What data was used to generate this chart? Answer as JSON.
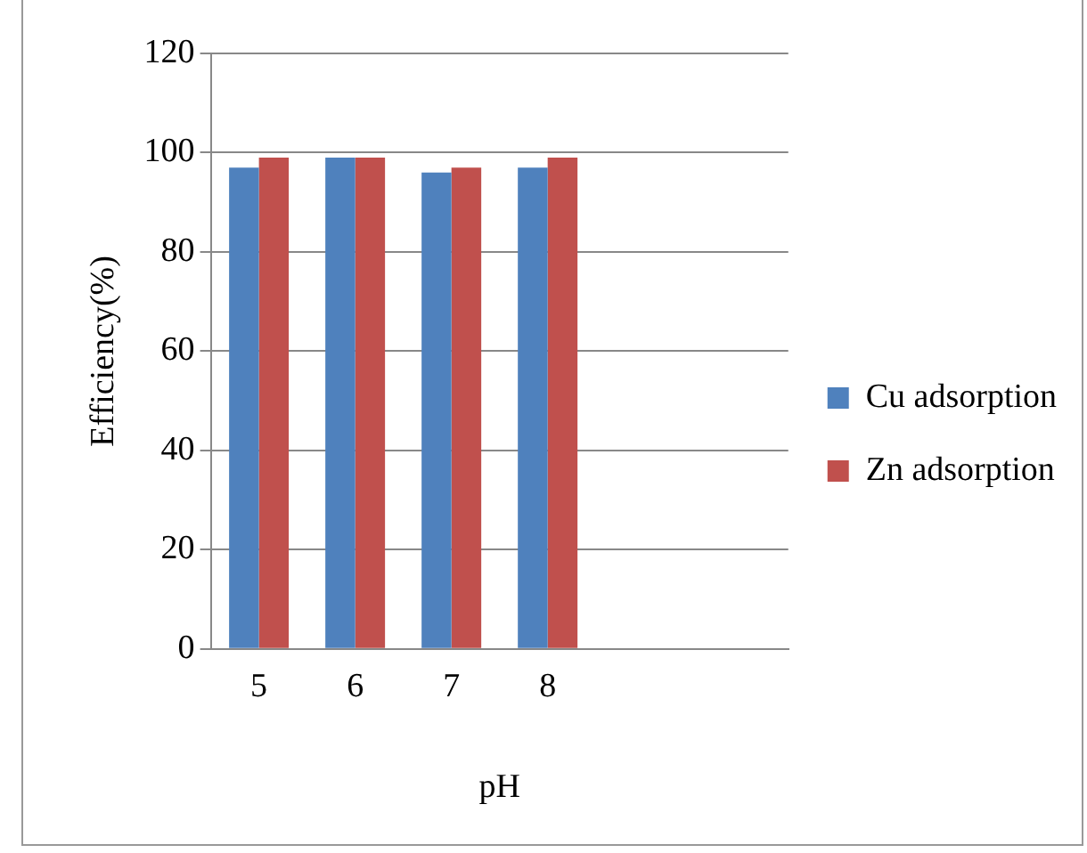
{
  "chart_data": {
    "type": "bar",
    "xlabel": "pH",
    "ylabel": "Efficiency(%)",
    "categories": [
      "5",
      "6",
      "7",
      "8",
      null,
      null
    ],
    "series": [
      {
        "name": "Cu adsorption",
        "color": "#4f81bd",
        "values": [
          97,
          99,
          96,
          97,
          null,
          null
        ]
      },
      {
        "name": "Zn adsorption",
        "color": "#c0504d",
        "values": [
          99,
          99,
          97,
          99,
          null,
          null
        ]
      }
    ],
    "ylim": [
      0,
      120
    ],
    "yticks": [
      0,
      20,
      40,
      60,
      80,
      100,
      120
    ],
    "grid": "y",
    "legend": "right"
  }
}
